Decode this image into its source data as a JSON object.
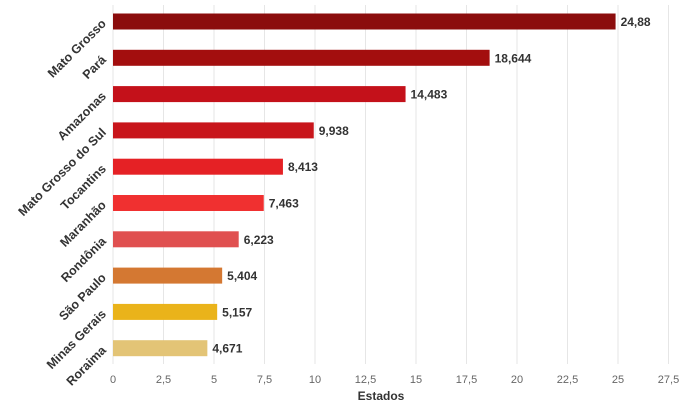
{
  "chart_data": {
    "type": "bar",
    "orientation": "horizontal",
    "categories": [
      "Mato Grosso",
      "Pará",
      "Amazonas",
      "Mato Grosso do Sul",
      "Tocantins",
      "Maranhão",
      "Rondônia",
      "São Paulo",
      "Minas Gerais",
      "Roraima"
    ],
    "values": [
      24.88,
      18.644,
      14.483,
      9.938,
      8.413,
      7.463,
      6.223,
      5.404,
      5.157,
      4.671
    ],
    "value_labels": [
      "24,88",
      "18,644",
      "14,483",
      "9,938",
      "8,413",
      "7,463",
      "6,223",
      "5,404",
      "5,157",
      "4,671"
    ],
    "colors": [
      "#8b0d0d",
      "#a30e0e",
      "#c4111a",
      "#c8151b",
      "#e52125",
      "#f03030",
      "#e05050",
      "#d47832",
      "#eab31a",
      "#e3c476"
    ],
    "x_ticks": [
      "0",
      "2,5",
      "5",
      "7,5",
      "10",
      "12,5",
      "15",
      "17,5",
      "20",
      "22,5",
      "25",
      "27,5"
    ],
    "xlim": [
      0,
      27.5
    ],
    "xlabel": "Estados",
    "ylabel": "",
    "title": "",
    "grid": true,
    "legend": "none"
  }
}
